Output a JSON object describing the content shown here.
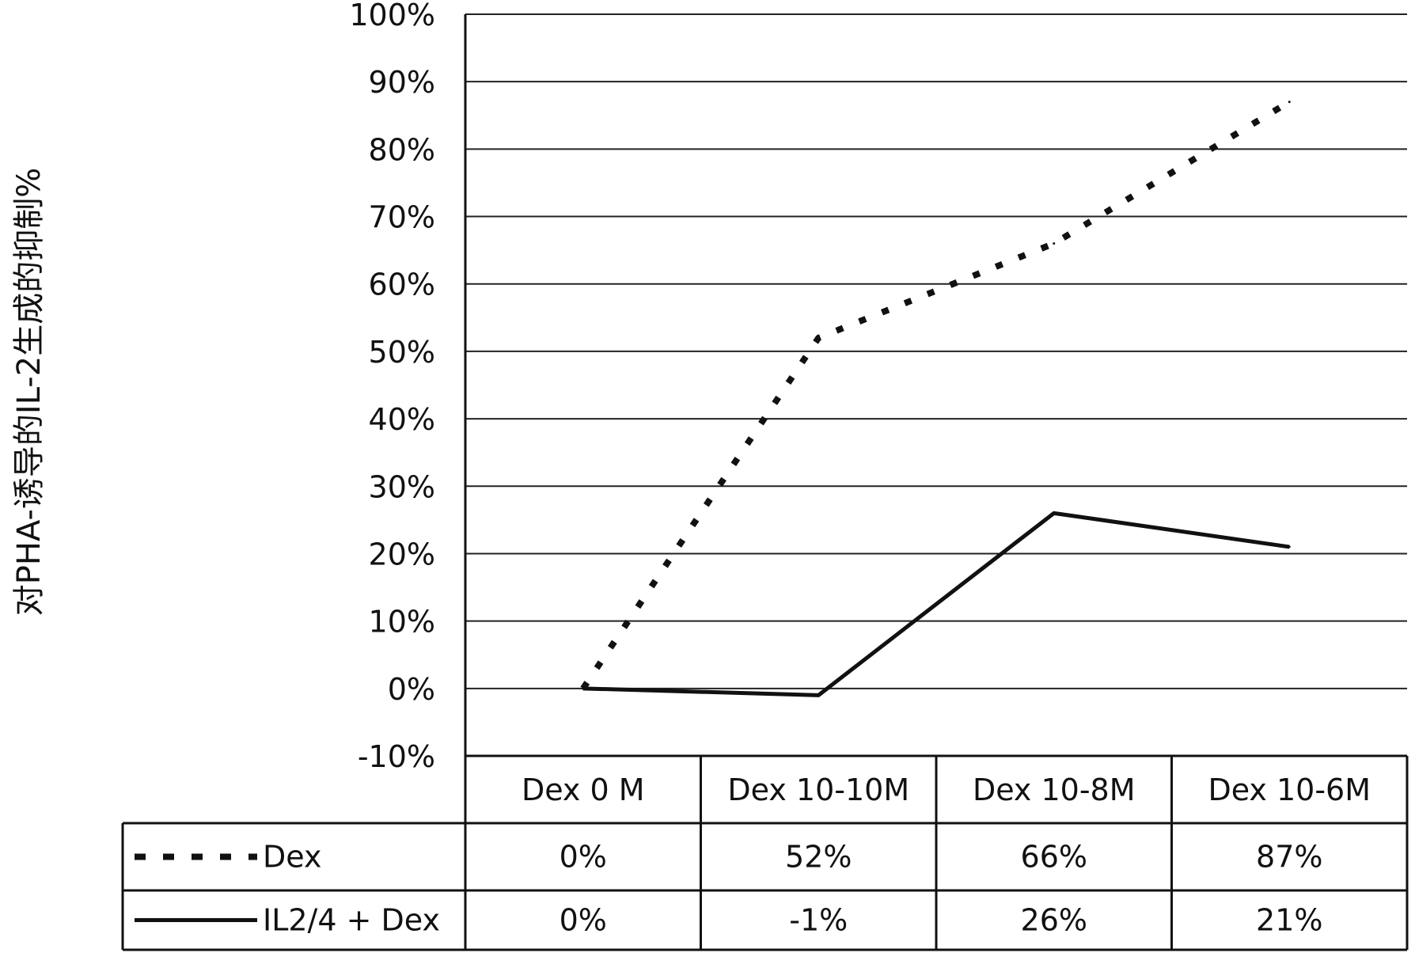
{
  "chart_data": {
    "type": "line",
    "ylabel": "对PHA-诱导的IL-2生成的抑制%",
    "ylim": [
      -0.1,
      1.0
    ],
    "yticks": [
      -0.1,
      0,
      0.1,
      0.2,
      0.3,
      0.4,
      0.5,
      0.6,
      0.7,
      0.8,
      0.9,
      1.0
    ],
    "ytick_labels": [
      "-10%",
      "0%",
      "10%",
      "20%",
      "30%",
      "40%",
      "50%",
      "60%",
      "70%",
      "80%",
      "90%",
      "100%"
    ],
    "categories": [
      "Dex 0 M",
      "Dex 10-10M",
      "Dex 10-8M",
      "Dex 10-6M"
    ],
    "grid": true,
    "legend_position": "data table below chart",
    "series": [
      {
        "name": "Dex",
        "style": "dashed",
        "color": "#111111",
        "values": [
          0.0,
          0.52,
          0.66,
          0.87
        ],
        "labels": [
          "0%",
          "52%",
          "66%",
          "87%"
        ]
      },
      {
        "name": "IL2/4 + Dex",
        "style": "solid",
        "color": "#111111",
        "values": [
          0.0,
          -0.01,
          0.26,
          0.21
        ],
        "labels": [
          "0%",
          "-1%",
          "26%",
          "21%"
        ]
      }
    ]
  }
}
